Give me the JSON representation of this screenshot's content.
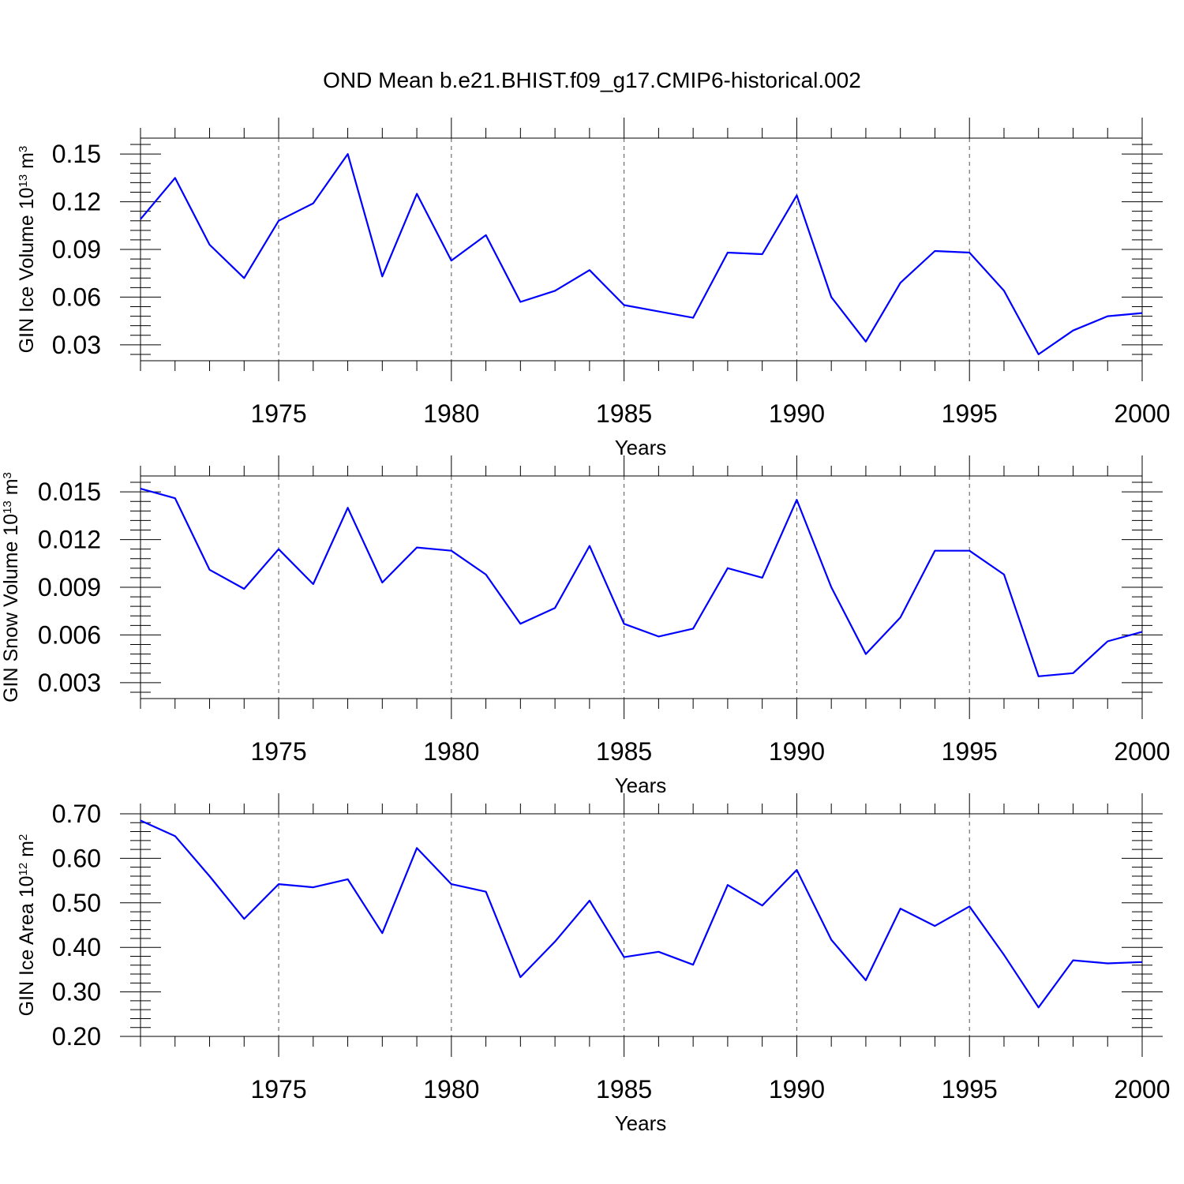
{
  "title": "OND Mean b.e21.BHIST.f09_g17.CMIP6-historical.002",
  "colors": {
    "series": "#0000ff",
    "frame": "#000000",
    "grid": "#555555"
  },
  "chart_data": [
    {
      "type": "line",
      "xlabel": "Years",
      "ylabel_prefix": "GIN Ice Volume 10",
      "ylabel_exp": "13",
      "ylabel_unit": " m",
      "ylabel_unit_exp": "3",
      "xlim": [
        1971,
        2000
      ],
      "ylim": [
        0.02,
        0.16
      ],
      "xticks": [
        1975,
        1980,
        1985,
        1990,
        1995,
        2000
      ],
      "xtick_labels": [
        "1975",
        "1980",
        "1985",
        "1990",
        "1995",
        "2000"
      ],
      "yticks": [
        0.03,
        0.06,
        0.09,
        0.12,
        0.15
      ],
      "ytick_labels": [
        "0.03",
        "0.06",
        "0.09",
        "0.12",
        "0.15"
      ],
      "grid": "vertical dashed at major x ticks",
      "x": [
        1971,
        1972,
        1973,
        1974,
        1975,
        1976,
        1977,
        1978,
        1979,
        1980,
        1981,
        1982,
        1983,
        1984,
        1985,
        1986,
        1987,
        1988,
        1989,
        1990,
        1991,
        1992,
        1993,
        1994,
        1995,
        1996,
        1997,
        1998,
        1999,
        2000
      ],
      "values": [
        0.109,
        0.135,
        0.093,
        0.072,
        0.108,
        0.119,
        0.15,
        0.073,
        0.125,
        0.083,
        0.099,
        0.057,
        0.064,
        0.077,
        0.055,
        0.051,
        0.047,
        0.088,
        0.087,
        0.124,
        0.06,
        0.032,
        0.069,
        0.089,
        0.088,
        0.064,
        0.024,
        0.039,
        0.048,
        0.05
      ]
    },
    {
      "type": "line",
      "xlabel": "Years",
      "ylabel_prefix": "GIN Snow Volume 10",
      "ylabel_exp": "13",
      "ylabel_unit": " m",
      "ylabel_unit_exp": "3",
      "xlim": [
        1971,
        2000
      ],
      "ylim": [
        0.002,
        0.016
      ],
      "xticks": [
        1975,
        1980,
        1985,
        1990,
        1995,
        2000
      ],
      "xtick_labels": [
        "1975",
        "1980",
        "1985",
        "1990",
        "1995",
        "2000"
      ],
      "yticks": [
        0.003,
        0.006,
        0.009,
        0.012,
        0.015
      ],
      "ytick_labels": [
        "0.003",
        "0.006",
        "0.009",
        "0.012",
        "0.015"
      ],
      "grid": "vertical dashed at major x ticks",
      "x": [
        1971,
        1972,
        1973,
        1974,
        1975,
        1976,
        1977,
        1978,
        1979,
        1980,
        1981,
        1982,
        1983,
        1984,
        1985,
        1986,
        1987,
        1988,
        1989,
        1990,
        1991,
        1992,
        1993,
        1994,
        1995,
        1996,
        1997,
        1998,
        1999,
        2000
      ],
      "values": [
        0.0152,
        0.0146,
        0.0101,
        0.0089,
        0.0114,
        0.0092,
        0.014,
        0.0093,
        0.0115,
        0.0113,
        0.0098,
        0.0067,
        0.0077,
        0.0116,
        0.0067,
        0.0059,
        0.0064,
        0.0102,
        0.0096,
        0.0145,
        0.009,
        0.0048,
        0.0071,
        0.0113,
        0.0113,
        0.0098,
        0.0034,
        0.0036,
        0.0056,
        0.0062
      ]
    },
    {
      "type": "line",
      "xlabel": "Years",
      "ylabel_prefix": "GIN Ice Area 10",
      "ylabel_exp": "12",
      "ylabel_unit": " m",
      "ylabel_unit_exp": "2",
      "xlim": [
        1971,
        2000
      ],
      "ylim": [
        0.2,
        0.7
      ],
      "xticks": [
        1975,
        1980,
        1985,
        1990,
        1995,
        2000
      ],
      "xtick_labels": [
        "1975",
        "1980",
        "1985",
        "1990",
        "1995",
        "2000"
      ],
      "yticks": [
        0.2,
        0.3,
        0.4,
        0.5,
        0.6,
        0.7
      ],
      "ytick_labels": [
        "0.20",
        "0.30",
        "0.40",
        "0.50",
        "0.60",
        "0.70"
      ],
      "grid": "vertical dashed at major x ticks",
      "x": [
        1971,
        1972,
        1973,
        1974,
        1975,
        1976,
        1977,
        1978,
        1979,
        1980,
        1981,
        1982,
        1983,
        1984,
        1985,
        1986,
        1987,
        1988,
        1989,
        1990,
        1991,
        1992,
        1993,
        1994,
        1995,
        1996,
        1997,
        1998,
        1999,
        2000
      ],
      "values": [
        0.685,
        0.65,
        0.56,
        0.464,
        0.542,
        0.535,
        0.553,
        0.432,
        0.623,
        0.542,
        0.525,
        0.333,
        0.413,
        0.505,
        0.378,
        0.39,
        0.361,
        0.54,
        0.494,
        0.574,
        0.417,
        0.326,
        0.487,
        0.448,
        0.492,
        0.383,
        0.265,
        0.371,
        0.364,
        0.367
      ]
    }
  ]
}
